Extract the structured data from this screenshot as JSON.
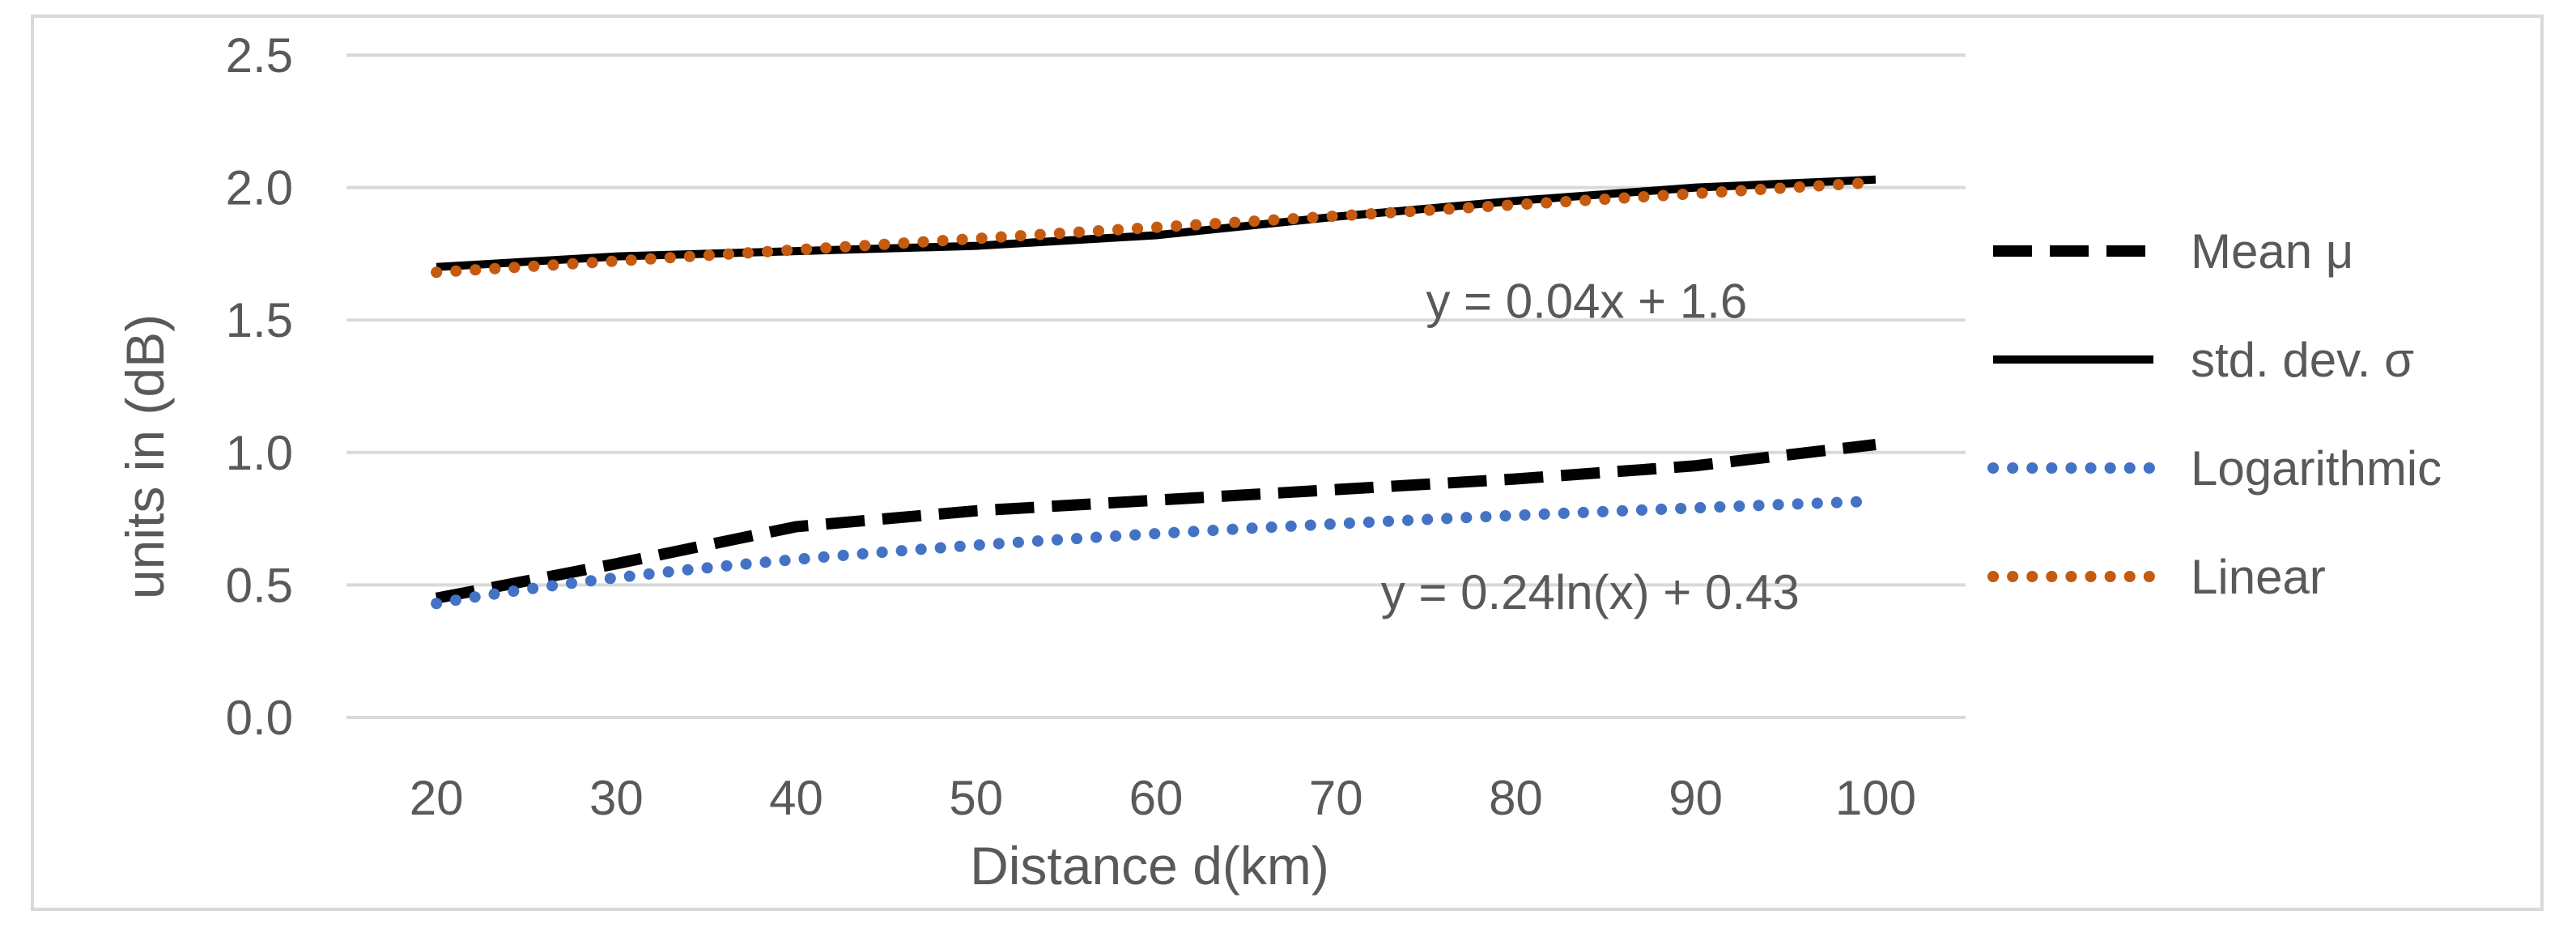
{
  "chart_data": {
    "type": "line",
    "title": "",
    "xlabel": "Distance d(km)",
    "ylabel": "units in (dB)",
    "xlim": [
      15,
      105
    ],
    "ylim": [
      0,
      2.5
    ],
    "xticks": [
      20,
      30,
      40,
      50,
      60,
      70,
      80,
      90,
      100
    ],
    "yticks": [
      0.0,
      0.5,
      1.0,
      1.5,
      2.0,
      2.5
    ],
    "ytick_labels": [
      "0.0",
      "0.5",
      "1.0",
      "1.5",
      "2.0",
      "2.5"
    ],
    "grid": true,
    "legend_position": "right",
    "series": [
      {
        "name": "Mean μ",
        "style": "dashed",
        "color": "#000000",
        "x": [
          20,
          30,
          40,
          50,
          60,
          70,
          80,
          90,
          100
        ],
        "y": [
          0.45,
          0.58,
          0.72,
          0.78,
          0.82,
          0.86,
          0.9,
          0.95,
          1.03
        ]
      },
      {
        "name": "std. dev. σ",
        "style": "solid",
        "color": "#000000",
        "x": [
          20,
          30,
          40,
          50,
          60,
          70,
          80,
          90,
          100
        ],
        "y": [
          1.7,
          1.74,
          1.76,
          1.78,
          1.82,
          1.89,
          1.95,
          2.0,
          2.03
        ]
      },
      {
        "name": "Logarithmic",
        "style": "dotted",
        "color": "#4472C4",
        "trend": "logarithmic",
        "coef_a": 0.24,
        "coef_b": 0.43,
        "x_range": [
          20,
          100
        ]
      },
      {
        "name": "Linear",
        "style": "dotted",
        "color": "#C55A11",
        "trend": "linear",
        "x_range": [
          20,
          100
        ],
        "y_range": [
          1.68,
          2.02
        ]
      }
    ],
    "annotations": [
      {
        "text": "y = 0.04x + 1.6",
        "x": 75,
        "y": 1.57
      },
      {
        "text": "y = 0.24ln(x) + 0.43",
        "x": 72.5,
        "y": 0.47
      }
    ]
  },
  "colors": {
    "frame": "#d9d9d9",
    "gridline": "#d9d9d9",
    "text": "#595959"
  }
}
